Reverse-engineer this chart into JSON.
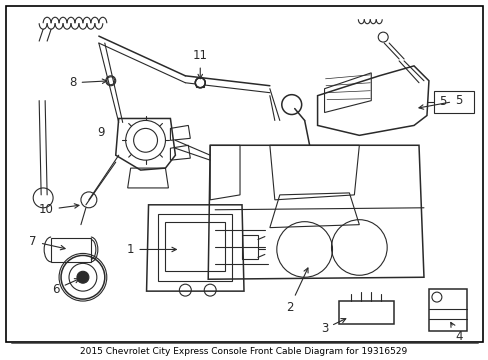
{
  "title": "2015 Chevrolet City Express Console Front Cable Diagram for 19316529",
  "background_color": "#ffffff",
  "line_color": "#2a2a2a",
  "fig_width": 4.89,
  "fig_height": 3.6,
  "dpi": 100,
  "title_fontsize": 6.5,
  "label_fontsize": 8.5
}
